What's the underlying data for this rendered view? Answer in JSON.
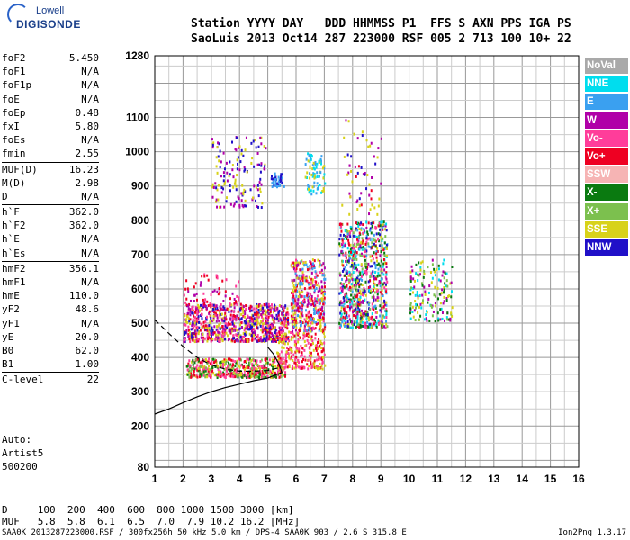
{
  "logo": {
    "line1": "Lowell",
    "line2": "DIGISONDE"
  },
  "header": {
    "line1": "Station YYYY DAY   DDD HHMMSS P1  FFS S AXN PPS IGA PS",
    "line2": "SaoLuis 2013 Oct14 287 223000 RSF 005 2 713 100 10+ 22"
  },
  "params": [
    {
      "k": "foF2",
      "v": "5.450"
    },
    {
      "k": "foF1",
      "v": "N/A"
    },
    {
      "k": "foF1p",
      "v": "N/A"
    },
    {
      "k": "foE",
      "v": "N/A"
    },
    {
      "k": "foEp",
      "v": "0.48"
    },
    {
      "k": "fxI",
      "v": "5.80"
    },
    {
      "k": "foEs",
      "v": "N/A"
    },
    {
      "k": "fmin",
      "v": "2.55"
    },
    {
      "k": "MUF(D)",
      "v": "16.23"
    },
    {
      "k": "M(D)",
      "v": "2.98"
    },
    {
      "k": "D",
      "v": "N/A"
    },
    {
      "k": "h`F",
      "v": "362.0"
    },
    {
      "k": "h`F2",
      "v": "362.0"
    },
    {
      "k": "h`E",
      "v": "N/A"
    },
    {
      "k": "h`Es",
      "v": "N/A"
    },
    {
      "k": "hmF2",
      "v": "356.1"
    },
    {
      "k": "hmF1",
      "v": "N/A"
    },
    {
      "k": "hmE",
      "v": "110.0"
    },
    {
      "k": "yF2",
      "v": "48.6"
    },
    {
      "k": "yF1",
      "v": "N/A"
    },
    {
      "k": "yE",
      "v": "20.0"
    },
    {
      "k": "B0",
      "v": "62.0"
    },
    {
      "k": "B1",
      "v": "1.00"
    },
    {
      "k": "C-level",
      "v": "22"
    }
  ],
  "auto": {
    "l1": "Auto:",
    "l2": "Artist5",
    "l3": "500200"
  },
  "footer": {
    "d_row": "D     100  200  400  600  800 1000 1500 3000 [km]",
    "muf_row": "MUF   5.8  5.8  6.1  6.5  7.0  7.9 10.2 16.2 [MHz]"
  },
  "bottom": {
    "left": "SAA0K_2013287223000.RSF / 300fx256h 50 kHz 5.0 km / DPS-4 SAA0K 903 / 2.6 S 315.8 E",
    "right": "Ion2Png 1.3.17"
  },
  "legend": [
    {
      "label": "NoVal",
      "color": "#a9a9a9"
    },
    {
      "label": "NNE",
      "color": "#00ddee"
    },
    {
      "label": "E",
      "color": "#3aa0f0"
    },
    {
      "label": "W",
      "color": "#b000a8"
    },
    {
      "label": "Vo-",
      "color": "#ff3d9a"
    },
    {
      "label": "Vo+",
      "color": "#ee0022"
    },
    {
      "label": "SSW",
      "color": "#f6b4b4"
    },
    {
      "label": "X-",
      "color": "#0a7a10"
    },
    {
      "label": "X+",
      "color": "#7cc04e"
    },
    {
      "label": "SSE",
      "color": "#d8d21a"
    },
    {
      "label": "NNW",
      "color": "#2010c8"
    }
  ],
  "chart_data": {
    "type": "scatter",
    "xlim": [
      1,
      16
    ],
    "ylim": [
      80,
      1280
    ],
    "x_ticks": [
      1,
      2,
      3,
      4,
      5,
      6,
      7,
      8,
      9,
      10,
      11,
      12,
      13,
      14,
      15,
      16
    ],
    "y_ticks": [
      80,
      200,
      300,
      400,
      500,
      600,
      700,
      800,
      900,
      1000,
      1100,
      1280
    ],
    "grid": true,
    "traces": [
      {
        "name": "profile",
        "style": "solid",
        "x": [
          1.0,
          1.5,
          2.0,
          2.5,
          3.0,
          3.5,
          4.0,
          4.5,
          5.0,
          5.3,
          5.5,
          5.4,
          5.2,
          5.0
        ],
        "y": [
          235,
          250,
          268,
          285,
          300,
          312,
          322,
          332,
          340,
          350,
          356,
          380,
          410,
          430
        ]
      },
      {
        "name": "virtual-height",
        "style": "dashed",
        "x": [
          1.0,
          1.5,
          2.0,
          2.5,
          3.0,
          3.5,
          4.0,
          4.5,
          5.0,
          5.5
        ],
        "y": [
          510,
          470,
          432,
          400,
          378,
          366,
          360,
          360,
          362,
          372
        ]
      }
    ],
    "clusters": [
      {
        "xr": [
          2.0,
          5.7
        ],
        "yr": [
          450,
          560
        ],
        "n": 900,
        "colors": [
          "#b000a8",
          "#ff3d9a",
          "#2010c8",
          "#ee0022",
          "#d8d21a"
        ]
      },
      {
        "xr": [
          2.1,
          5.6
        ],
        "yr": [
          345,
          400
        ],
        "n": 500,
        "colors": [
          "#ee0022",
          "#0a7a10",
          "#7cc04e",
          "#d8d21a",
          "#ff3d9a"
        ]
      },
      {
        "xr": [
          5.3,
          7.0
        ],
        "yr": [
          370,
          480
        ],
        "n": 250,
        "colors": [
          "#ee0022",
          "#ff3d9a",
          "#d8d21a"
        ]
      },
      {
        "xr": [
          5.8,
          7.0
        ],
        "yr": [
          480,
          690
        ],
        "n": 450,
        "colors": [
          "#d8d21a",
          "#ee0022",
          "#ff3d9a",
          "#b000a8",
          "#3aa0f0"
        ]
      },
      {
        "xr": [
          7.5,
          9.2
        ],
        "yr": [
          490,
          800
        ],
        "n": 800,
        "colors": [
          "#b000a8",
          "#ee0022",
          "#ff3d9a",
          "#d8d21a",
          "#2010c8",
          "#00ddee",
          "#0a7a10",
          "#3aa0f0",
          "#7cc04e"
        ]
      },
      {
        "xr": [
          10.0,
          11.5
        ],
        "yr": [
          510,
          690
        ],
        "n": 160,
        "colors": [
          "#0a7a10",
          "#7cc04e",
          "#00ddee",
          "#b000a8",
          "#d8d21a"
        ]
      },
      {
        "xr": [
          3.0,
          4.9
        ],
        "yr": [
          840,
          1050
        ],
        "n": 150,
        "colors": [
          "#d8d21a",
          "#2010c8",
          "#b000a8"
        ]
      },
      {
        "xr": [
          6.3,
          7.0
        ],
        "yr": [
          880,
          1000
        ],
        "n": 80,
        "colors": [
          "#d8d21a",
          "#3aa0f0",
          "#00ddee"
        ]
      },
      {
        "xr": [
          7.6,
          9.0
        ],
        "yr": [
          820,
          1100
        ],
        "n": 60,
        "colors": [
          "#b000a8",
          "#d8d21a",
          "#ee0022",
          "#2010c8"
        ]
      },
      {
        "xr": [
          5.1,
          5.6
        ],
        "yr": [
          900,
          940
        ],
        "n": 40,
        "colors": [
          "#2010c8",
          "#3aa0f0"
        ]
      },
      {
        "xr": [
          2.0,
          4.0
        ],
        "yr": [
          560,
          650
        ],
        "n": 60,
        "colors": [
          "#b000a8",
          "#ff3d9a",
          "#ee0022"
        ]
      }
    ]
  }
}
